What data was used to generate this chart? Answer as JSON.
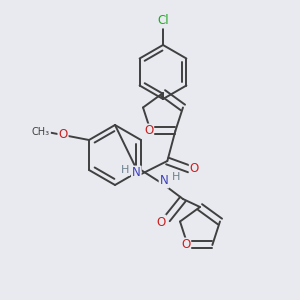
{
  "background_color": "#e8eaf0",
  "atom_colors": {
    "C": "#404040",
    "N": "#4040bb",
    "O": "#cc2020",
    "Cl": "#22aa22",
    "H": "#708090"
  },
  "bond_color": "#404040",
  "bond_width": 1.4,
  "figsize": [
    3.0,
    3.0
  ],
  "dpi": 100
}
